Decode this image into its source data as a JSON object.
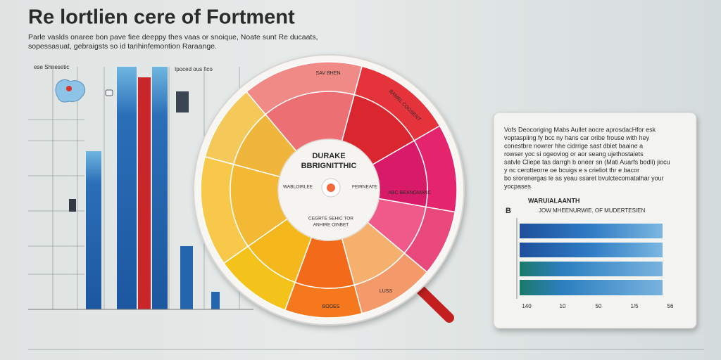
{
  "header": {
    "title": "Re lortlien cere of Fortment",
    "subtitle": [
      "Parle vaslds onaree bon pave fiee deeppy thes vaas or snoique, Noate sunt Re ducaats,",
      "sopessasuat, gebraigsts so id tarihinfemontion Raraange."
    ]
  },
  "left_panel": {
    "label_left": "ese Shnesetic",
    "label_right": "Ipoced ous fico"
  },
  "wheel": {
    "center_title": [
      "DURAKE",
      "BBRIGNITTHIC"
    ],
    "center_left": "WABLOIRLEE",
    "center_right": "FEIRNEATE",
    "center_bottom": [
      "CEGRTE SEHIC TOR",
      "ANHIRE OINBET"
    ],
    "segment_labels": [
      "SAV BHEN",
      "BAMEL COGSENT",
      "ABC BEANGMANC",
      "BOOES",
      "LUSS"
    ]
  },
  "card": {
    "text": [
      "Vofs Deocoriging Mabs Aullet aocre aprosdacHfor esk",
      "voptaspiing fy bcc ny hans car oribe frouse with hey",
      "conestbre nowrer hhe cidrrige sast dblet baaine a",
      "rowser yoc si ogeoviog or aor seang ujethostaiets",
      "satvle Cliepe tas darrgh b oneer sn (Mati Auarfs bodli) jiocu",
      "y nc cerotteorre oe bcuigs e s crieliot thr e bacor",
      "bo srorenergas le as yeau ssaret bvulctecomatalhar your",
      "yocpases"
    ],
    "legend_letter": "B",
    "chart_title": "WARUIALAANTH",
    "chart_subtitle": "JOW MHEENURWIE. OF MUDERTESIEN",
    "axis_labels": [
      "140",
      "10",
      "50",
      "1/5",
      "56"
    ]
  }
}
